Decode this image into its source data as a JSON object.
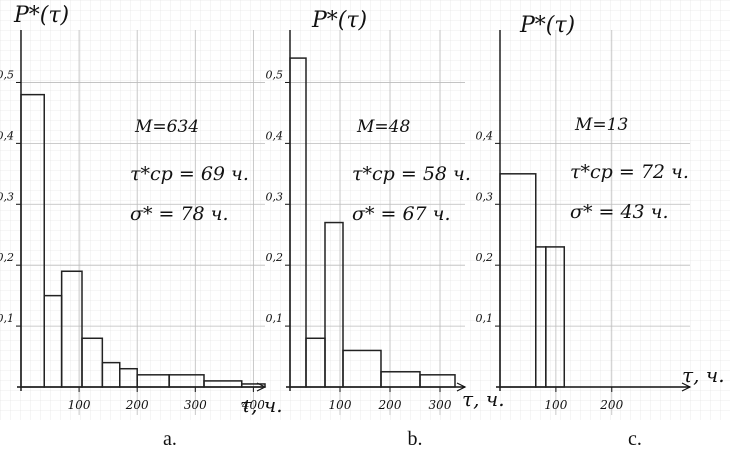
{
  "chart_data": [
    {
      "type": "histogram",
      "title": "P*(τ)",
      "x_label": "τ, ч.",
      "caption": "a.",
      "annotations": [
        "M=634",
        "τ*ср = 69 ч.",
        "σ* = 78 ч."
      ],
      "bins": [
        0,
        40,
        70,
        105,
        140,
        170,
        200,
        255,
        315,
        380,
        420
      ],
      "values": [
        0.48,
        0.15,
        0.19,
        0.08,
        0.04,
        0.03,
        0.02,
        0.02,
        0.01,
        0.005
      ],
      "color": "#222222",
      "xlim": [
        0,
        420
      ],
      "ylim": [
        0,
        0.55
      ],
      "xticks": [
        100,
        200,
        300,
        400
      ],
      "yticks": [
        {
          "value": 0.1,
          "label": "0,1"
        },
        {
          "value": 0.2,
          "label": "0,2"
        },
        {
          "value": 0.3,
          "label": "0,3"
        },
        {
          "value": 0.4,
          "label": "0,4"
        },
        {
          "value": 0.5,
          "label": "0,5"
        }
      ],
      "grid": true
    },
    {
      "type": "histogram",
      "title": "P*(τ)",
      "x_label": "τ, ч.",
      "caption": "b.",
      "annotations": [
        "M=48",
        "τ*ср = 58 ч.",
        "σ* = 67 ч."
      ],
      "bins": [
        0,
        32,
        70,
        106,
        182,
        260,
        330
      ],
      "values": [
        0.54,
        0.08,
        0.27,
        0.06,
        0.025,
        0.02
      ],
      "color": "#222222",
      "xlim": [
        0,
        350
      ],
      "ylim": [
        0,
        0.55
      ],
      "xticks": [
        100,
        200,
        300
      ],
      "yticks": [
        {
          "value": 0.1,
          "label": "0,1"
        },
        {
          "value": 0.2,
          "label": "0,2"
        },
        {
          "value": 0.3,
          "label": "0,3"
        },
        {
          "value": 0.4,
          "label": "0,4"
        },
        {
          "value": 0.5,
          "label": "0,5"
        }
      ],
      "grid": true
    },
    {
      "type": "histogram",
      "title": "P*(τ)",
      "x_label": "τ, ч.",
      "caption": "c.",
      "annotations": [
        "M=13",
        "τ*ср = 72 ч.",
        "σ* = 43 ч."
      ],
      "bins": [
        0,
        64,
        82,
        115
      ],
      "values": [
        0.35,
        0.23,
        0.23
      ],
      "color": "#222222",
      "xlim": [
        0,
        340
      ],
      "ylim": [
        0,
        0.55
      ],
      "xticks": [
        100,
        200
      ],
      "yticks": [
        {
          "value": 0.1,
          "label": "0,1"
        },
        {
          "value": 0.2,
          "label": "0,2"
        },
        {
          "value": 0.3,
          "label": "0,3"
        },
        {
          "value": 0.4,
          "label": "0,4"
        }
      ],
      "grid": true
    }
  ]
}
